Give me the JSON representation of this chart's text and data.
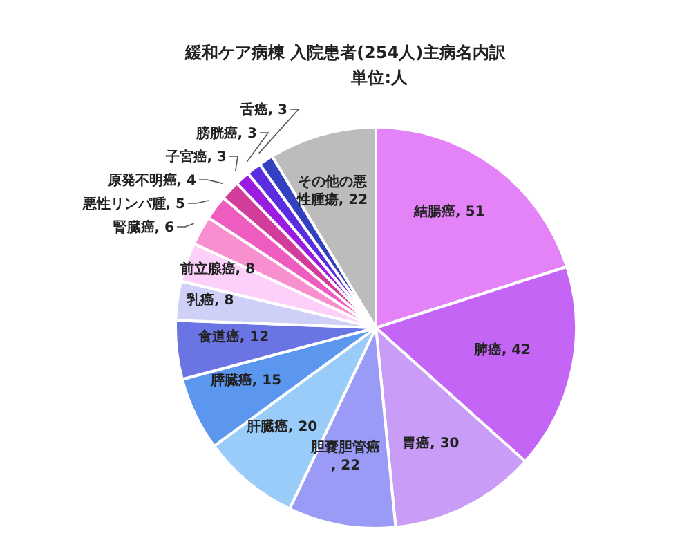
{
  "chart_data": {
    "type": "pie",
    "title": "緩和ケア病棟 入院患者(254人)主病名内訳",
    "subtitle": "単位:人",
    "categories": [
      "結腸癌",
      "肺癌",
      "胃癌",
      "胆嚢胆管癌",
      "肝臓癌",
      "膵臓癌",
      "食道癌",
      "乳癌",
      "前立腺癌",
      "腎臓癌",
      "悪性リンパ腫",
      "原発不明癌",
      "子宮癌",
      "膀胱癌",
      "舌癌",
      "その他の悪性腫瘍"
    ],
    "values": [
      51,
      42,
      30,
      22,
      20,
      15,
      12,
      8,
      8,
      6,
      5,
      4,
      3,
      3,
      3,
      22
    ],
    "colors": [
      "#e383f7",
      "#c565f5",
      "#c99cf7",
      "#9a9af7",
      "#99ccf8",
      "#5b96ef",
      "#6a74e3",
      "#cfd0f7",
      "#fcd0f8",
      "#f890d0",
      "#ee5cbf",
      "#d23c9a",
      "#9a1ce0",
      "#5a2ee0",
      "#3340c0",
      "#bcbcbc"
    ],
    "value_labels": [
      ", 51",
      ", 42",
      ", 30",
      ", 22",
      ", 20",
      ", 15",
      ", 12",
      ", 8",
      ", 8",
      ", 6",
      ", 5",
      ", 4",
      ", 3",
      ", 3",
      ", 3",
      ", 22"
    ],
    "legend": false
  }
}
